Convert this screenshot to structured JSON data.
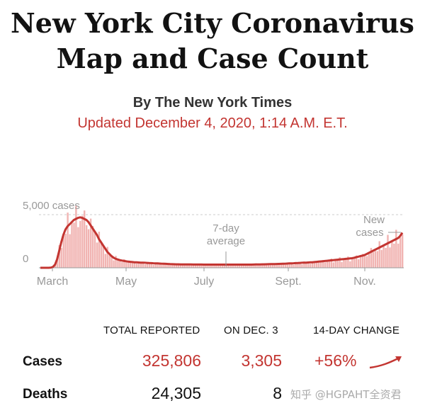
{
  "headline": {
    "line1": "New York City Coronavirus",
    "line2": "Map and Case Count"
  },
  "byline": "By The New York Times",
  "updated": "Updated December 4, 2020, 1:14 A.M. E.T.",
  "colors": {
    "accent": "#c33531",
    "bars": "#f1b4b2"
  },
  "chart_data": {
    "type": "area",
    "y_tick_top": "5,000 cases",
    "y_tick_zero": "0",
    "ylim": [
      0,
      7000
    ],
    "x_labels": [
      "March",
      "May",
      "July",
      "Sept.",
      "Nov."
    ],
    "annotation_avg": [
      "7-day",
      "average"
    ],
    "annotation_new": [
      "New",
      "cases"
    ],
    "series": [
      {
        "values": [
          0,
          0,
          0,
          0,
          0,
          10,
          80,
          300,
          800,
          1600,
          2400,
          3100,
          3600,
          3900,
          4100,
          4300,
          4500,
          4600,
          4700,
          4750,
          4700,
          4600,
          4500,
          4300,
          4000,
          3700,
          3400,
          3100,
          2700,
          2400,
          2100,
          1800,
          1500,
          1300,
          1100,
          950,
          850,
          780,
          720,
          680,
          640,
          610,
          580,
          560,
          540,
          520,
          510,
          500,
          490,
          480,
          470,
          460,
          450,
          440,
          430,
          420,
          410,
          400,
          390,
          380,
          370,
          360,
          350,
          340,
          335,
          330,
          325,
          320,
          318,
          315,
          312,
          310,
          310,
          308,
          306,
          305,
          305,
          304,
          303,
          302,
          300,
          300,
          300,
          300,
          300,
          300,
          300,
          300,
          300,
          300,
          300,
          300,
          300,
          300,
          300,
          300,
          300,
          300,
          300,
          300,
          300,
          300,
          305,
          310,
          315,
          320,
          325,
          330,
          335,
          340,
          345,
          350,
          355,
          360,
          365,
          370,
          380,
          390,
          400,
          410,
          420,
          430,
          440,
          450,
          460,
          470,
          480,
          490,
          500,
          510,
          520,
          540,
          560,
          580,
          600,
          620,
          640,
          660,
          680,
          700,
          720,
          740,
          760,
          780,
          800,
          820,
          840,
          860,
          880,
          900,
          950,
          1000,
          1050,
          1100,
          1150,
          1200,
          1300,
          1400,
          1500,
          1600,
          1700,
          1800,
          1900,
          2000,
          2100,
          2200,
          2300,
          2400,
          2500,
          2600,
          2700,
          2800,
          3000,
          3300
        ]
      }
    ]
  },
  "stats": {
    "headers": {
      "total": "TOTAL REPORTED",
      "on_date": "ON DEC. 3",
      "change": "14-DAY CHANGE"
    },
    "rows": [
      {
        "label": "Cases",
        "total": "325,806",
        "on_date": "3,305",
        "change": "+56%"
      },
      {
        "label": "Deaths",
        "total": "24,305",
        "on_date": "8",
        "change": ""
      }
    ]
  },
  "watermark": "知乎 @HGPAHT全资君"
}
